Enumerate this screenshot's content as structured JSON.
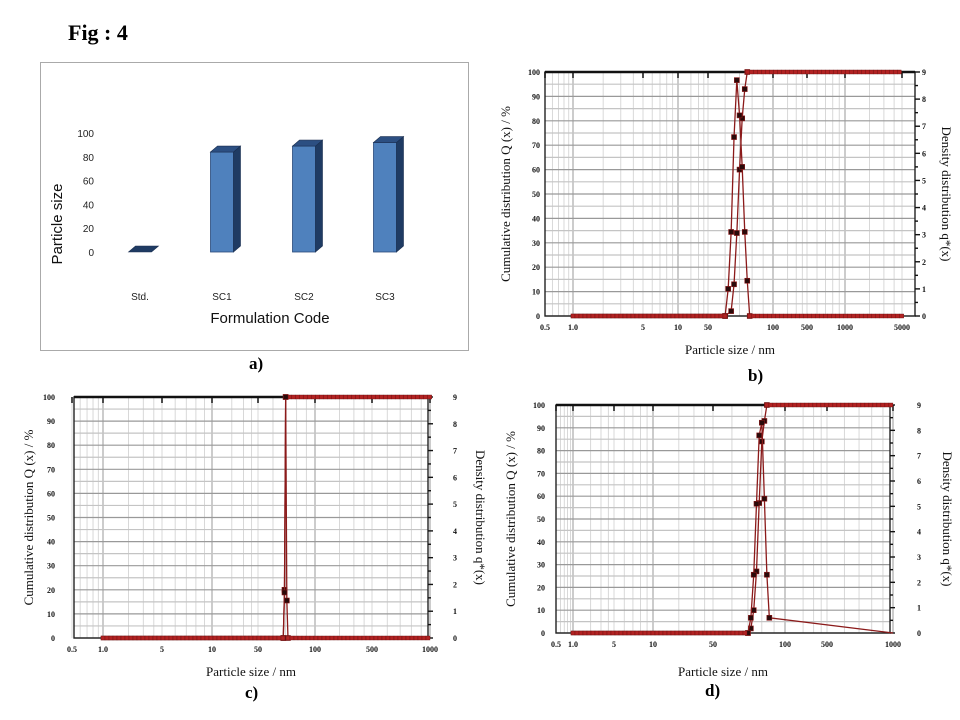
{
  "figure": {
    "title": "Fig : 4"
  },
  "chart_data": [
    {
      "id": "a",
      "panel_label": "a)",
      "type": "bar",
      "title": "",
      "xlabel": "Formulation Code",
      "ylabel": "Particle size",
      "categories": [
        "Std.",
        "SC1",
        "SC2",
        "SC3"
      ],
      "values": [
        0,
        84,
        89,
        92
      ],
      "ylim": [
        0,
        100
      ],
      "yticks": [
        0,
        20,
        40,
        60,
        80,
        100
      ],
      "style": "3d-column",
      "bar_color": "#4F81BD",
      "grid": false,
      "legend": "none"
    },
    {
      "id": "b",
      "panel_label": "b)",
      "type": "line",
      "xlabel": "Particle size / nm",
      "ylabel_left": "Cumulative distribution Q (x) / %",
      "ylabel_right": "Density distribution q*(x)",
      "xscale": "log",
      "xticks": [
        "0.5",
        "1.0",
        "5",
        "10",
        "50",
        "100",
        "500",
        "1000",
        "5000"
      ],
      "ylim_left": [
        0,
        100
      ],
      "yticks_left": [
        0,
        10,
        20,
        30,
        40,
        50,
        60,
        70,
        80,
        90,
        100
      ],
      "ylim_right": [
        0,
        9
      ],
      "yticks_right": [
        0,
        1,
        2,
        3,
        4,
        5,
        6,
        7,
        8,
        9
      ],
      "grid": true,
      "series": [
        {
          "name": "Cumulative distribution Q(x)",
          "color": "#8B1A1A",
          "x": [
            1,
            60,
            64,
            66,
            68,
            70,
            72,
            74,
            76,
            5000
          ],
          "y": [
            0,
            0,
            2,
            13,
            34,
            60,
            81,
            93,
            100,
            100
          ]
        },
        {
          "name": "Density distribution q*(x)",
          "color": "#8B1A1A",
          "x": [
            1,
            60,
            62,
            64,
            66,
            68,
            70,
            72,
            74,
            76,
            78,
            5000
          ],
          "y": [
            0,
            0,
            1,
            3.1,
            6.6,
            8.7,
            7.4,
            5.5,
            3.1,
            1.3,
            0,
            0
          ]
        }
      ]
    },
    {
      "id": "c",
      "panel_label": "c)",
      "type": "line",
      "xlabel": "Particle size / nm",
      "ylabel_left": "Cumulative distribution Q (x) / %",
      "ylabel_right": "Density distribution q*(x)",
      "xscale": "log",
      "xticks": [
        "0.5",
        "1.0",
        "5",
        "10",
        "50",
        "100",
        "500",
        "1000"
      ],
      "ylim_left": [
        0,
        100
      ],
      "yticks_left": [
        0,
        10,
        20,
        30,
        40,
        50,
        60,
        70,
        80,
        90,
        100
      ],
      "ylim_right": [
        0,
        9
      ],
      "yticks_right": [
        0,
        1,
        2,
        3,
        4,
        5,
        6,
        7,
        8,
        9
      ],
      "grid": true,
      "series": [
        {
          "name": "Cumulative distribution Q(x)",
          "color": "#8B1A1A",
          "x": [
            1,
            68,
            69,
            70,
            1000
          ],
          "y": [
            0,
            0,
            20,
            100,
            100
          ]
        },
        {
          "name": "Density distribution q*(x)",
          "color": "#8B1A1A",
          "x": [
            1,
            68,
            69,
            70,
            71,
            72,
            1000
          ],
          "y": [
            0,
            0,
            1.7,
            9,
            1.4,
            0,
            0
          ]
        }
      ]
    },
    {
      "id": "d",
      "panel_label": "d)",
      "type": "line",
      "xlabel": "Particle size / nm",
      "ylabel_left": "Cumulative distribution Q (x) / %",
      "ylabel_right": "Density distribution q*(x)",
      "xscale": "log",
      "xticks": [
        "0.5",
        "1.0",
        "5",
        "10",
        "50",
        "100",
        "500",
        "1000"
      ],
      "ylim_left": [
        0,
        100
      ],
      "yticks_left": [
        0,
        10,
        20,
        30,
        40,
        50,
        60,
        70,
        80,
        90,
        100
      ],
      "ylim_right": [
        0,
        9
      ],
      "yticks_right": [
        0,
        1,
        2,
        3,
        4,
        5,
        6,
        7,
        8,
        9
      ],
      "grid": true,
      "series": [
        {
          "name": "Cumulative distribution Q(x)",
          "color": "#8B1A1A",
          "x": [
            1,
            70,
            72,
            74,
            76,
            78,
            80,
            82,
            84,
            1000
          ],
          "y": [
            0,
            0,
            2,
            10,
            27,
            57,
            84,
            93,
            100,
            100
          ]
        },
        {
          "name": "Density distribution q*(x)",
          "color": "#8B1A1A",
          "x": [
            1,
            70,
            72,
            74,
            76,
            78,
            80,
            82,
            84,
            86,
            1000
          ],
          "y": [
            0,
            0,
            0.6,
            2.3,
            5.1,
            7.8,
            8.3,
            5.3,
            2.3,
            0.6,
            0
          ]
        }
      ]
    }
  ]
}
